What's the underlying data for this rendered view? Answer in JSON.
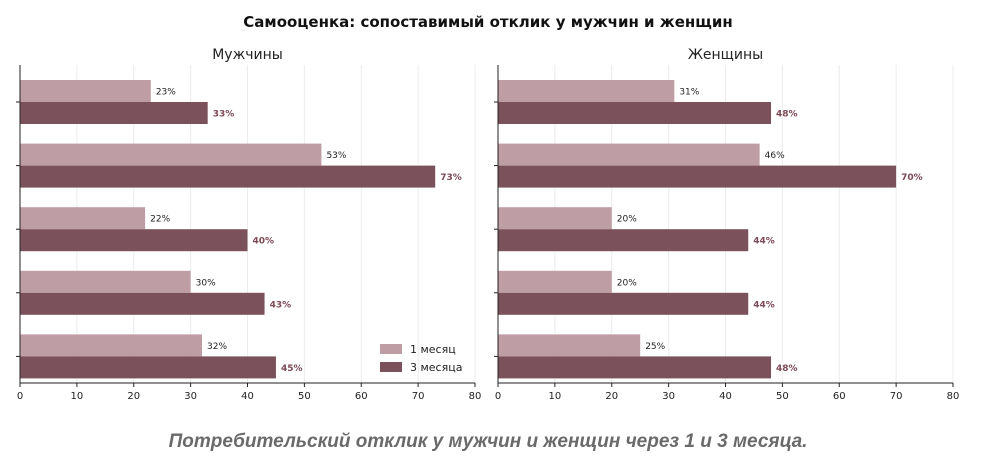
{
  "title": "Самооценка: сопоставимый отклик у мужчин и женщин",
  "caption": "Потребительский отклик у мужчин и женщин через 1 и 3 месяца.",
  "legend": [
    "1 месяц",
    "3 месяца"
  ],
  "colors": {
    "month1": "#be9da4",
    "month3": "#7b525b"
  },
  "chart_data": [
    {
      "type": "bar",
      "orientation": "horizontal",
      "title": "Мужчины",
      "xlim": [
        0,
        80
      ],
      "xticks": [
        0,
        10,
        20,
        30,
        40,
        50,
        60,
        70,
        80
      ],
      "legend_position": "lower-right",
      "series": [
        {
          "name": "1 месяц",
          "values": [
            23,
            53,
            22,
            30,
            32
          ],
          "labels": [
            "23%",
            "53%",
            "22%",
            "30%",
            "32%"
          ]
        },
        {
          "name": "3 месяца",
          "values": [
            33,
            73,
            40,
            43,
            45
          ],
          "labels": [
            "33%",
            "73%",
            "40%",
            "43%",
            "45%"
          ]
        }
      ]
    },
    {
      "type": "bar",
      "orientation": "horizontal",
      "title": "Женщины",
      "xlim": [
        0,
        80
      ],
      "xticks": [
        0,
        10,
        20,
        30,
        40,
        50,
        60,
        70,
        80
      ],
      "series": [
        {
          "name": "1 месяц",
          "values": [
            31,
            46,
            20,
            20,
            25
          ],
          "labels": [
            "31%",
            "46%",
            "20%",
            "20%",
            "25%"
          ]
        },
        {
          "name": "3 месяца",
          "values": [
            48,
            70,
            44,
            44,
            48
          ],
          "labels": [
            "48%",
            "70%",
            "44%",
            "44%",
            "48%"
          ]
        }
      ]
    }
  ]
}
